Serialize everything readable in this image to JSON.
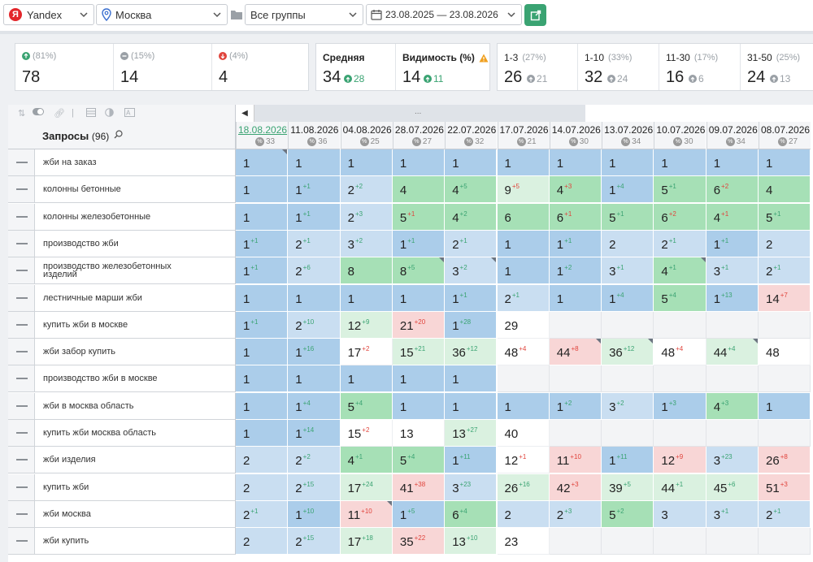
{
  "toolbar": {
    "engine": "Yandex",
    "engine_badge": "Я",
    "region": "Москва",
    "group": "Все группы",
    "date_range": "23.08.2025 — 23.08.2026"
  },
  "stats": {
    "groups": [
      {
        "pct": "(81%)",
        "value": "78",
        "icon": "arrow-up-icon",
        "color": "#3aa372"
      },
      {
        "pct": "(15%)",
        "value": "14",
        "icon": "minus-icon",
        "color": "#9aa0a6"
      },
      {
        "pct": "(4%)",
        "value": "4",
        "icon": "arrow-down-icon",
        "color": "#e0443c"
      }
    ],
    "average": {
      "label": "Средняя",
      "value": "34",
      "delta": "28"
    },
    "visibility": {
      "label": "Видимость (%)",
      "value": "14",
      "delta": "11"
    },
    "ranges": [
      {
        "label": "1-3",
        "pct": "(27%)",
        "value": "26",
        "delta": "21"
      },
      {
        "label": "1-10",
        "pct": "(33%)",
        "value": "32",
        "delta": "24"
      },
      {
        "label": "11-30",
        "pct": "(17%)",
        "value": "16",
        "delta": "6"
      },
      {
        "label": "31-50",
        "pct": "(25%)",
        "value": "24",
        "delta": "13"
      }
    ]
  },
  "table": {
    "queries_label": "Запросы",
    "queries_count": "(96)",
    "scroll_grip": "...",
    "pct_sign": "%",
    "dates": [
      {
        "date": "18.08.2026",
        "meta": "33"
      },
      {
        "date": "11.08.2026",
        "meta": "36"
      },
      {
        "date": "04.08.2026",
        "meta": "25"
      },
      {
        "date": "28.07.2026",
        "meta": "27"
      },
      {
        "date": "22.07.2026",
        "meta": "32"
      },
      {
        "date": "17.07.2026",
        "meta": "21"
      },
      {
        "date": "14.07.2026",
        "meta": "30"
      },
      {
        "date": "13.07.2026",
        "meta": "34"
      },
      {
        "date": "10.07.2026",
        "meta": "30"
      },
      {
        "date": "09.07.2026",
        "meta": "34"
      },
      {
        "date": "08.07.2026",
        "meta": "27"
      }
    ],
    "rows": [
      {
        "q": "жби на заказ",
        "cells": [
          [
            "1",
            "",
            "b",
            1
          ],
          [
            "1",
            "",
            "b",
            0
          ],
          [
            "1",
            "",
            "b",
            0
          ],
          [
            "1",
            "",
            "b",
            0
          ],
          [
            "1",
            "",
            "b",
            0
          ],
          [
            "1",
            "",
            "b",
            0
          ],
          [
            "1",
            "",
            "b",
            0
          ],
          [
            "1",
            "",
            "b",
            0
          ],
          [
            "1",
            "",
            "b",
            0
          ],
          [
            "1",
            "",
            "b",
            0
          ],
          [
            "1",
            "",
            "b",
            0
          ]
        ]
      },
      {
        "q": "колонны бетонные",
        "cells": [
          [
            "1",
            "",
            "b",
            0
          ],
          [
            "1",
            "+1",
            "b",
            0
          ],
          [
            "2",
            "+2",
            "lb",
            0
          ],
          [
            "4",
            "",
            "g",
            0
          ],
          [
            "4",
            "+5",
            "g",
            0
          ],
          [
            "9",
            "+5",
            "lg",
            0
          ],
          [
            "4",
            "+3",
            "g",
            0
          ],
          [
            "1",
            "+4",
            "b",
            0
          ],
          [
            "5",
            "+1",
            "g",
            0
          ],
          [
            "6",
            "+2",
            "g",
            0
          ],
          [
            "4",
            "",
            "g",
            0
          ]
        ]
      },
      {
        "q": "колонны железобетонные",
        "cells": [
          [
            "1",
            "",
            "b",
            0
          ],
          [
            "1",
            "+1",
            "b",
            0
          ],
          [
            "2",
            "+3",
            "lb",
            0
          ],
          [
            "5",
            "+1",
            "g",
            0
          ],
          [
            "4",
            "+2",
            "g",
            0
          ],
          [
            "6",
            "",
            "g",
            0
          ],
          [
            "6",
            "+1",
            "g",
            0
          ],
          [
            "5",
            "+1",
            "g",
            0
          ],
          [
            "6",
            "+2",
            "g",
            0
          ],
          [
            "4",
            "+1",
            "g",
            0
          ],
          [
            "5",
            "+1",
            "g",
            0
          ]
        ]
      },
      {
        "q": "производство жби",
        "cells": [
          [
            "1",
            "+1",
            "b",
            0
          ],
          [
            "2",
            "+1",
            "lb",
            0
          ],
          [
            "3",
            "+2",
            "lb",
            0
          ],
          [
            "1",
            "+1",
            "b",
            0
          ],
          [
            "2",
            "+1",
            "lb",
            0
          ],
          [
            "1",
            "",
            "b",
            0
          ],
          [
            "1",
            "+1",
            "b",
            0
          ],
          [
            "2",
            "",
            "lb",
            0
          ],
          [
            "2",
            "+1",
            "lb",
            0
          ],
          [
            "1",
            "+1",
            "b",
            0
          ],
          [
            "2",
            "",
            "lb",
            0
          ]
        ]
      },
      {
        "q": "производство железобетонных изделий",
        "cells": [
          [
            "1",
            "+1",
            "b",
            0
          ],
          [
            "2",
            "+6",
            "lb",
            0
          ],
          [
            "8",
            "",
            "g",
            0
          ],
          [
            "8",
            "+5",
            "g",
            1
          ],
          [
            "3",
            "+2",
            "lb",
            1
          ],
          [
            "1",
            "",
            "b",
            0
          ],
          [
            "1",
            "+2",
            "b",
            0
          ],
          [
            "3",
            "+1",
            "lb",
            0
          ],
          [
            "4",
            "+1",
            "g",
            1
          ],
          [
            "3",
            "+1",
            "lb",
            0
          ],
          [
            "2",
            "+1",
            "lb",
            0
          ]
        ]
      },
      {
        "q": "лестничные марши жби",
        "cells": [
          [
            "1",
            "",
            "b",
            0
          ],
          [
            "1",
            "",
            "b",
            0
          ],
          [
            "1",
            "",
            "b",
            0
          ],
          [
            "1",
            "",
            "b",
            0
          ],
          [
            "1",
            "+1",
            "b",
            0
          ],
          [
            "2",
            "+1",
            "lb",
            0
          ],
          [
            "1",
            "",
            "b",
            0
          ],
          [
            "1",
            "+4",
            "b",
            0
          ],
          [
            "5",
            "+4",
            "g",
            0
          ],
          [
            "1",
            "+13",
            "b",
            0
          ],
          [
            "14",
            "+7",
            "r",
            0
          ]
        ]
      },
      {
        "q": "купить жби в москве",
        "cells": [
          [
            "1",
            "+1",
            "b",
            0
          ],
          [
            "2",
            "+10",
            "lb",
            0
          ],
          [
            "12",
            "+9",
            "lg",
            0
          ],
          [
            "21",
            "+20",
            "r",
            0
          ],
          [
            "1",
            "+28",
            "b",
            0
          ],
          [
            "29",
            "",
            "w",
            0
          ],
          [
            "",
            "",
            "gr",
            0
          ],
          [
            "",
            "",
            "gr",
            0
          ],
          [
            "",
            "",
            "gr",
            0
          ],
          [
            "",
            "",
            "gr",
            0
          ],
          [
            "",
            "",
            "gr",
            0
          ]
        ]
      },
      {
        "q": "жби забор купить",
        "cells": [
          [
            "1",
            "",
            "b",
            0
          ],
          [
            "1",
            "+16",
            "b",
            0
          ],
          [
            "17",
            "+2",
            "w",
            0
          ],
          [
            "15",
            "+21",
            "lg",
            0
          ],
          [
            "36",
            "+12",
            "lg",
            0
          ],
          [
            "48",
            "+4",
            "w",
            0
          ],
          [
            "44",
            "+8",
            "r",
            1
          ],
          [
            "36",
            "+12",
            "lg",
            1
          ],
          [
            "48",
            "+4",
            "w",
            0
          ],
          [
            "44",
            "+4",
            "lg",
            1
          ],
          [
            "48",
            "",
            "w",
            0
          ]
        ]
      },
      {
        "q": "производство жби в москве",
        "cells": [
          [
            "1",
            "",
            "b",
            0
          ],
          [
            "1",
            "",
            "b",
            0
          ],
          [
            "1",
            "",
            "b",
            0
          ],
          [
            "1",
            "",
            "b",
            0
          ],
          [
            "1",
            "",
            "b",
            0
          ],
          [
            "",
            "",
            "gr",
            0
          ],
          [
            "",
            "",
            "gr",
            0
          ],
          [
            "",
            "",
            "gr",
            0
          ],
          [
            "",
            "",
            "gr",
            0
          ],
          [
            "",
            "",
            "gr",
            0
          ],
          [
            "",
            "",
            "gr",
            0
          ]
        ]
      },
      {
        "q": "жби в москва область",
        "cells": [
          [
            "1",
            "",
            "b",
            0
          ],
          [
            "1",
            "+4",
            "b",
            0
          ],
          [
            "5",
            "+4",
            "g",
            0
          ],
          [
            "1",
            "",
            "b",
            0
          ],
          [
            "1",
            "",
            "b",
            0
          ],
          [
            "1",
            "",
            "b",
            0
          ],
          [
            "1",
            "+2",
            "b",
            0
          ],
          [
            "3",
            "+2",
            "lb",
            0
          ],
          [
            "1",
            "+3",
            "b",
            0
          ],
          [
            "4",
            "+3",
            "g",
            0
          ],
          [
            "1",
            "",
            "b",
            0
          ]
        ]
      },
      {
        "q": "купить жби москва область",
        "cells": [
          [
            "1",
            "",
            "b",
            0
          ],
          [
            "1",
            "+14",
            "b",
            0
          ],
          [
            "15",
            "+2",
            "w",
            0
          ],
          [
            "13",
            "",
            "w",
            0
          ],
          [
            "13",
            "+27",
            "lg",
            0
          ],
          [
            "40",
            "",
            "w",
            0
          ],
          [
            "",
            "",
            "gr",
            0
          ],
          [
            "",
            "",
            "gr",
            0
          ],
          [
            "",
            "",
            "gr",
            0
          ],
          [
            "",
            "",
            "gr",
            0
          ],
          [
            "",
            "",
            "gr",
            0
          ]
        ]
      },
      {
        "q": "жби изделия",
        "cells": [
          [
            "2",
            "",
            "lb",
            0
          ],
          [
            "2",
            "+2",
            "lb",
            0
          ],
          [
            "4",
            "+1",
            "g",
            0
          ],
          [
            "5",
            "+4",
            "g",
            0
          ],
          [
            "1",
            "+11",
            "b",
            0
          ],
          [
            "12",
            "+1",
            "w",
            0
          ],
          [
            "11",
            "+10",
            "r",
            0
          ],
          [
            "1",
            "+11",
            "b",
            0
          ],
          [
            "12",
            "+9",
            "r",
            0
          ],
          [
            "3",
            "+23",
            "lb",
            0
          ],
          [
            "26",
            "+8",
            "r",
            0
          ]
        ]
      },
      {
        "q": "купить жби",
        "cells": [
          [
            "2",
            "",
            "lb",
            0
          ],
          [
            "2",
            "+15",
            "lb",
            0
          ],
          [
            "17",
            "+24",
            "lg",
            0
          ],
          [
            "41",
            "+38",
            "r",
            0
          ],
          [
            "3",
            "+23",
            "lb",
            0
          ],
          [
            "26",
            "+16",
            "lg",
            0
          ],
          [
            "42",
            "+3",
            "r",
            0
          ],
          [
            "39",
            "+5",
            "lg",
            0
          ],
          [
            "44",
            "+1",
            "lg",
            0
          ],
          [
            "45",
            "+6",
            "lg",
            0
          ],
          [
            "51",
            "+3",
            "r",
            0
          ]
        ]
      },
      {
        "q": "жби москва",
        "cells": [
          [
            "2",
            "+1",
            "lb",
            0
          ],
          [
            "1",
            "+10",
            "b",
            0
          ],
          [
            "11",
            "+10",
            "r",
            1
          ],
          [
            "1",
            "+5",
            "b",
            0
          ],
          [
            "6",
            "+4",
            "g",
            0
          ],
          [
            "2",
            "",
            "lb",
            0
          ],
          [
            "2",
            "+3",
            "lb",
            0
          ],
          [
            "5",
            "+2",
            "g",
            0
          ],
          [
            "3",
            "",
            "lb",
            0
          ],
          [
            "3",
            "+1",
            "lb",
            0
          ],
          [
            "2",
            "+1",
            "lb",
            0
          ]
        ]
      },
      {
        "q": "жби купить",
        "cells": [
          [
            "2",
            "",
            "lb",
            0
          ],
          [
            "2",
            "+15",
            "lb",
            0
          ],
          [
            "17",
            "+18",
            "lg",
            0
          ],
          [
            "35",
            "+22",
            "r",
            0
          ],
          [
            "13",
            "+10",
            "lg",
            0
          ],
          [
            "23",
            "",
            "w",
            0
          ],
          [
            "",
            "",
            "gr",
            0
          ],
          [
            "",
            "",
            "gr",
            0
          ],
          [
            "",
            "",
            "gr",
            0
          ],
          [
            "",
            "",
            "gr",
            0
          ],
          [
            "",
            "",
            "gr",
            0
          ]
        ]
      }
    ],
    "delta_dirs": {
      "1": {
        "2": "up",
        "3": "up",
        "4": "up",
        "5": "dn",
        "6": "dn",
        "7": "up",
        "8": "up",
        "9": "dn",
        "10": "up"
      },
      "2": {
        "1": "up",
        "2": "up",
        "3": "dn",
        "4": "up",
        "6": "dn",
        "7": "up",
        "8": "dn",
        "9": "dn"
      }
    }
  }
}
